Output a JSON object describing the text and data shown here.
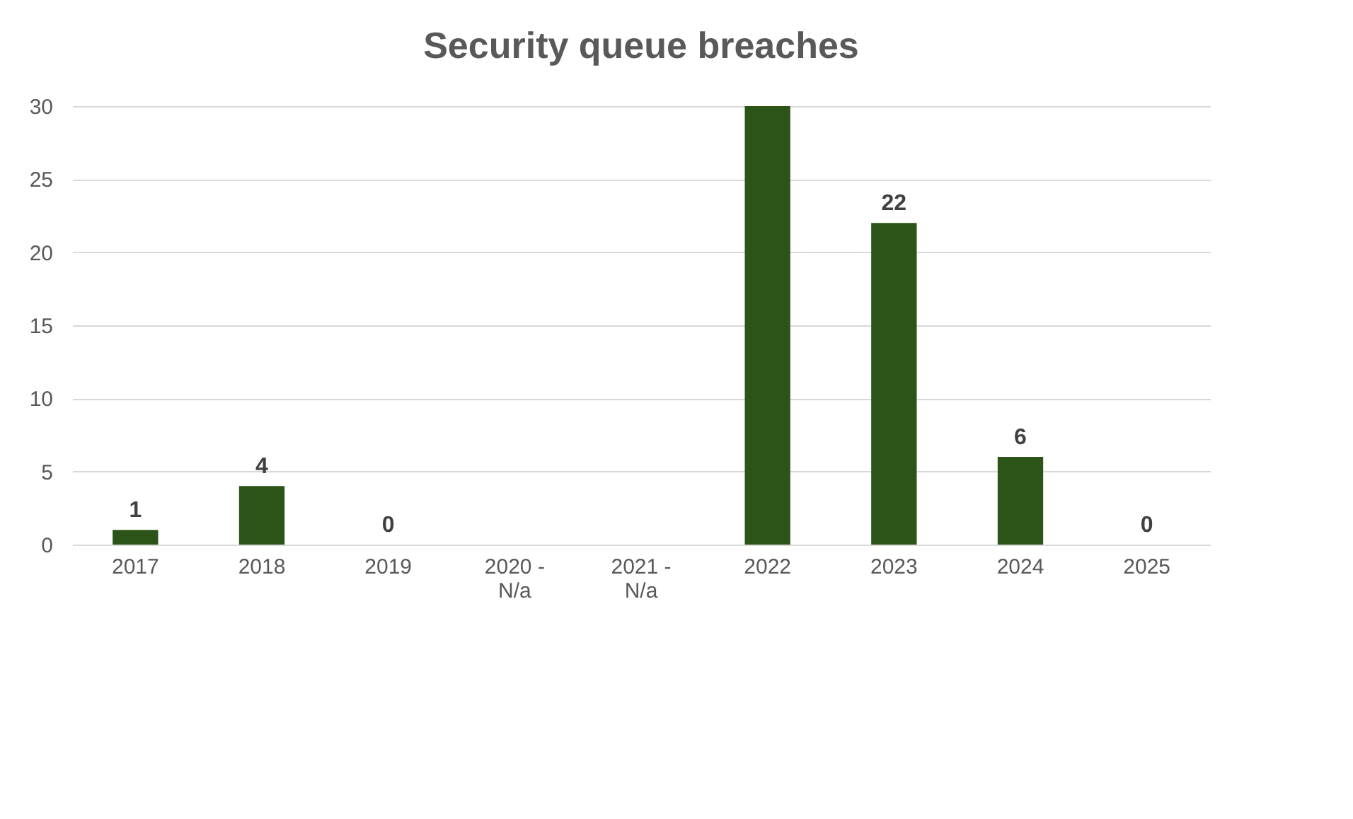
{
  "chart_data": {
    "type": "bar",
    "title": "Security queue breaches",
    "categories": [
      "2017",
      "2018",
      "2019",
      "2020 - N/a",
      "2021 - N/a",
      "2022",
      "2023",
      "2024",
      "2025"
    ],
    "values": [
      1,
      4,
      0,
      null,
      null,
      30,
      22,
      6,
      0
    ],
    "value_labels": [
      "1",
      "4",
      "0",
      null,
      null,
      null,
      "22",
      "6",
      "0"
    ],
    "color": "#2c5418",
    "ylim": [
      0,
      30
    ],
    "yticks": [
      0,
      5,
      10,
      15,
      20,
      25,
      30
    ],
    "grid": "y"
  }
}
